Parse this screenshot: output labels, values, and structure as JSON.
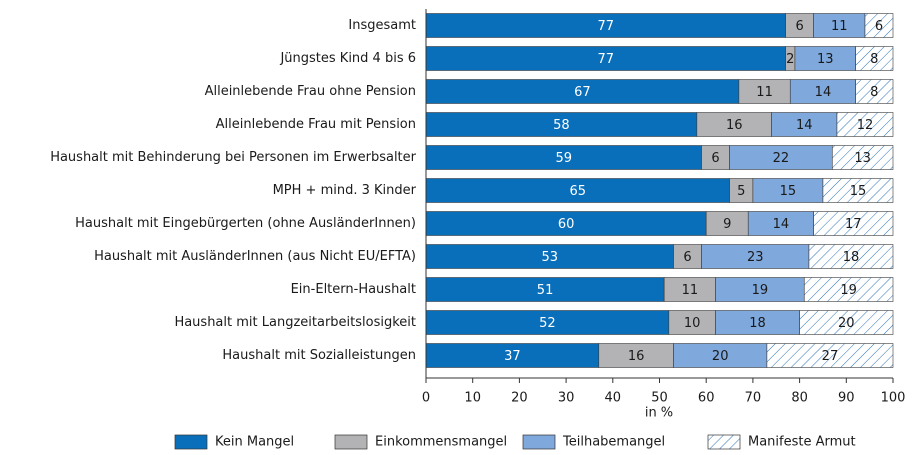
{
  "chart_data": {
    "type": "stacked-barh",
    "categories": [
      "Insgesamt",
      "Jüngstes Kind 4 bis 6",
      "Alleinlebende Frau ohne Pension",
      "Alleinlebende Frau mit Pension",
      "Haushalt mit Behinderung bei Personen im Erwerbsalter",
      "MPH + mind. 3 Kinder",
      "Haushalt mit Eingebürgerten (ohne AusländerInnen)",
      "Haushalt mit AusländerInnen (aus Nicht EU/EFTA)",
      "Ein-Eltern-Haushalt",
      "Haushalt mit Langzeitarbeitslosigkeit",
      "Haushalt mit Sozialleistungen"
    ],
    "series": [
      {
        "name": "Kein Mangel",
        "color": "#0a6fba",
        "values": [
          77,
          77,
          67,
          58,
          59,
          65,
          60,
          53,
          51,
          52,
          37
        ]
      },
      {
        "name": "Einkommensmangel",
        "color": "#b3b3b5",
        "values": [
          6,
          2,
          11,
          16,
          6,
          5,
          9,
          6,
          11,
          10,
          16
        ]
      },
      {
        "name": "Teilhabemangel",
        "color": "#7fa8dc",
        "values": [
          11,
          13,
          14,
          14,
          22,
          15,
          14,
          23,
          19,
          18,
          20
        ]
      },
      {
        "name": "Manifeste Armut",
        "color": "#2b73bd",
        "pattern": "hatch",
        "values": [
          6,
          8,
          8,
          12,
          13,
          15,
          17,
          18,
          19,
          20,
          27
        ]
      }
    ],
    "xlabel": "in %",
    "xlim": [
      0,
      100
    ],
    "xticks": [
      0,
      10,
      20,
      30,
      40,
      50,
      60,
      70,
      80,
      90,
      100
    ],
    "legend": "bottom"
  }
}
